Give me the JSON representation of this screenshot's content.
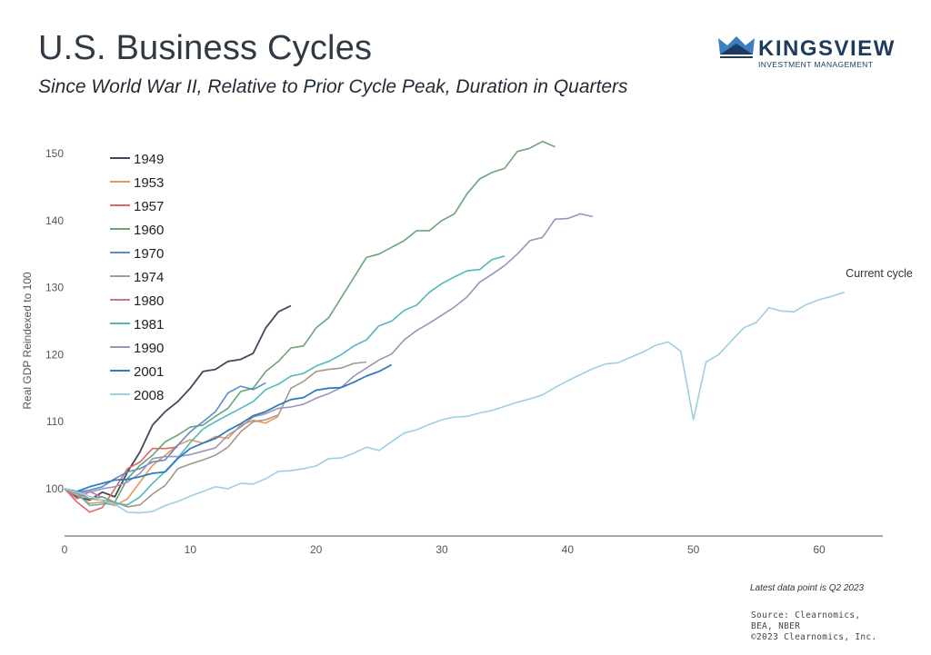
{
  "header": {
    "title": "U.S. Business Cycles",
    "subtitle": "Since World War II, Relative to Prior Cycle Peak, Duration in Quarters"
  },
  "logo": {
    "name": "KINGSVIEW",
    "tagline": "INVESTMENT MANAGEMENT",
    "color": "#1e3a5c",
    "accent": "#3b7fc0"
  },
  "footer": {
    "note": "Latest data point is Q2 2023",
    "source": "Source: Clearnomics,\nBEA, NBER\n©2023 Clearnomics, Inc."
  },
  "chart_data": {
    "type": "line",
    "title": "U.S. Business Cycles",
    "subtitle": "Since World War II, Relative to Prior Cycle Peak, Duration in Quarters",
    "xlabel": "",
    "ylabel": "Real GDP Reindexed to 100",
    "xlim": [
      0,
      65
    ],
    "ylim": [
      93,
      153
    ],
    "xticks": [
      0,
      10,
      20,
      30,
      40,
      50,
      60
    ],
    "yticks": [
      100,
      110,
      120,
      130,
      140,
      150
    ],
    "grid": false,
    "legend_position": "top-left",
    "annotations": [
      {
        "text": "Current cycle",
        "x": 62,
        "y": 131
      }
    ],
    "series": [
      {
        "name": "1949",
        "color": "#3d4a5c",
        "values": [
          100,
          98.8,
          98.3,
          99.5,
          98.8,
          102.5,
          105.5,
          109.5,
          111.5,
          113,
          115,
          117.5,
          117.8,
          119,
          119.3,
          120.2,
          124,
          126.4,
          127.3
        ]
      },
      {
        "name": "1953",
        "color": "#e8994f",
        "values": [
          100,
          99,
          97.8,
          98,
          97.5,
          98.5,
          101,
          103.5,
          105,
          106.5,
          107.3,
          106.8,
          107.8,
          107.5,
          109.5,
          110.2,
          109.8,
          110.8
        ]
      },
      {
        "name": "1957",
        "color": "#e06666",
        "values": [
          100,
          98,
          96.5,
          97.2,
          100,
          103,
          104,
          106,
          106,
          106.2
        ]
      },
      {
        "name": "1960",
        "color": "#6aa37a",
        "values": [
          100,
          99.5,
          98.5,
          98.8,
          98,
          101.5,
          103.5,
          105,
          107,
          108,
          109.2,
          109.5,
          110.8,
          112,
          114.5,
          115,
          117.5,
          119,
          121,
          121.3,
          124,
          125.5,
          128.5,
          131.5,
          134.5,
          135,
          136,
          137,
          138.5,
          138.5,
          140,
          141,
          144,
          146.2,
          147.2,
          147.8,
          150.3,
          150.8,
          151.8,
          151
        ]
      },
      {
        "name": "1970",
        "color": "#5b8ec6",
        "values": [
          100,
          99.5,
          99.8,
          100.3,
          101.5,
          102.5,
          103,
          104,
          104.3,
          106.5,
          108.5,
          110,
          111.5,
          114.3,
          115.3,
          114.8,
          115.8
        ]
      },
      {
        "name": "1974",
        "color": "#a89686",
        "values": [
          100,
          99.3,
          98.5,
          98.3,
          98,
          97.3,
          97.6,
          99.2,
          100.5,
          103,
          103.7,
          104.3,
          105,
          106.2,
          108.5,
          110,
          110.3,
          111,
          115,
          116,
          117.5,
          117.8,
          118,
          118.7,
          118.9
        ]
      },
      {
        "name": "1980",
        "color": "#c47a8e",
        "values": [
          100,
          98.5,
          99.6,
          98.7
        ]
      },
      {
        "name": "1981",
        "color": "#4fb8bd",
        "values": [
          100,
          99.3,
          97.5,
          97.7,
          97.8,
          97.6,
          98.8,
          100.8,
          102.6,
          104.6,
          106.9,
          108.9,
          110,
          111,
          112,
          113,
          114.8,
          115.6,
          116.8,
          117.2,
          118.3,
          119,
          120,
          121.3,
          122.2,
          124.3,
          125,
          126.6,
          127.4,
          129.3,
          130.6,
          131.6,
          132.5,
          132.7,
          134.2,
          134.7
        ]
      },
      {
        "name": "1990",
        "color": "#9a94bb",
        "values": [
          100,
          99.4,
          99.5,
          100,
          100.3,
          101,
          102.3,
          104.5,
          104.8,
          104.8,
          105.1,
          105.6,
          106.1,
          108,
          109.2,
          110.7,
          111.2,
          112,
          112.2,
          112.6,
          113.5,
          114.2,
          115.1,
          116.8,
          118,
          119.2,
          120.1,
          122.2,
          123.6,
          124.7,
          125.9,
          127.1,
          128.6,
          130.8,
          132,
          133.3,
          135,
          137,
          137.5,
          140.2,
          140.3,
          141,
          140.6
        ]
      },
      {
        "name": "2001",
        "color": "#2f7cc0",
        "values": [
          100,
          99.6,
          100.3,
          100.8,
          101.3,
          101.4,
          101.8,
          102.3,
          102.5,
          104.5,
          106,
          106.8,
          107.5,
          108.7,
          109.7,
          110.9,
          111.5,
          112.5,
          113.3,
          113.6,
          114.7,
          115,
          115.1,
          115.9,
          116.8,
          117.5,
          118.5
        ]
      },
      {
        "name": "2008",
        "color": "#9ecde6",
        "values": [
          100,
          99.5,
          98.9,
          98.2,
          97.7,
          96.5,
          96.4,
          96.6,
          97.5,
          98.1,
          98.9,
          99.6,
          100.3,
          100,
          100.8,
          100.7,
          101.5,
          102.6,
          102.7,
          103,
          103.4,
          104.5,
          104.6,
          105.3,
          106.2,
          105.7,
          107,
          108.3,
          108.8,
          109.6,
          110.3,
          110.7,
          110.8,
          111.3,
          111.7,
          112.3,
          112.9,
          113.4,
          114,
          115.1,
          116.1,
          117,
          117.9,
          118.6,
          118.8,
          119.6,
          120.4,
          121.4,
          121.9,
          120.5,
          110.3,
          118.9,
          120,
          122,
          124,
          124.8,
          127,
          126.5,
          126.4,
          127.5,
          128.2,
          128.7,
          129.3
        ]
      }
    ]
  }
}
